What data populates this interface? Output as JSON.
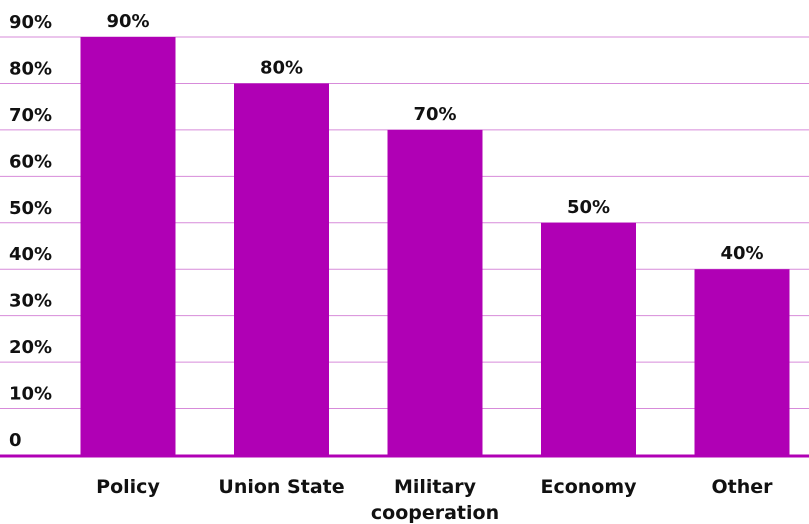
{
  "chart_data": {
    "type": "bar",
    "categories": [
      "Policy",
      "Union State",
      "Military\ncooperation",
      "Economy",
      "Other"
    ],
    "values": [
      90,
      80,
      70,
      50,
      40
    ],
    "data_labels": [
      "90%",
      "80%",
      "70%",
      "50%",
      "40%"
    ],
    "ylim": [
      0,
      90
    ],
    "y_ticks": [
      0,
      10,
      20,
      30,
      40,
      50,
      60,
      70,
      80,
      90
    ],
    "y_tick_labels": [
      "0",
      "10%",
      "20%",
      "30%",
      "40%",
      "50%",
      "60%",
      "70%",
      "80%",
      "90%"
    ],
    "grid": true,
    "legend": "none"
  },
  "colors": {
    "bar": "#B000B5",
    "grid": "#D78BDA",
    "axis": "#B000B5",
    "text": "#111111"
  }
}
